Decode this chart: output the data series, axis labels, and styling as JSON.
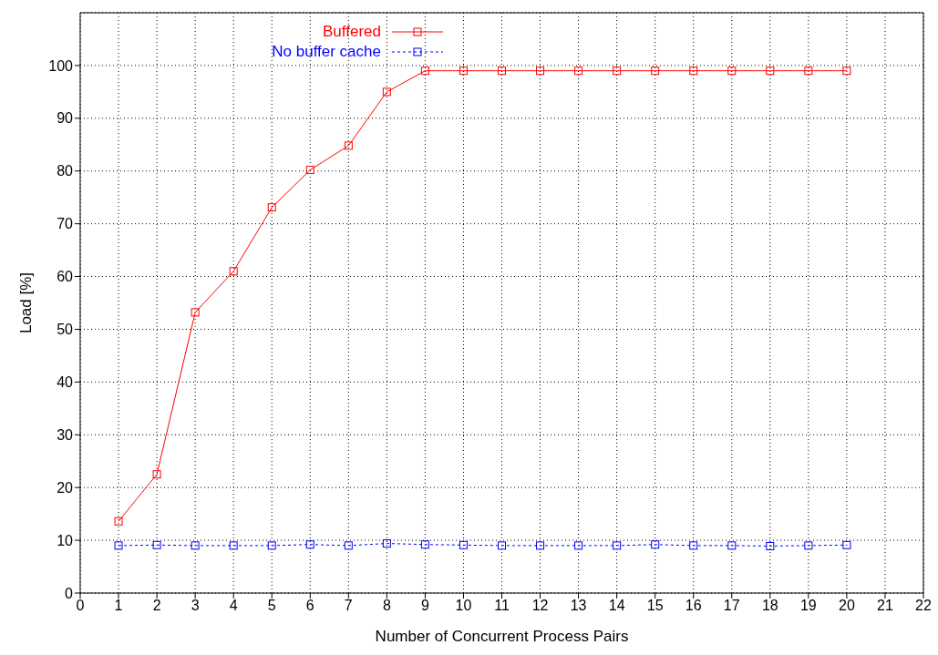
{
  "chart_data": {
    "type": "line",
    "xlabel": "Number of Concurrent Process Pairs",
    "ylabel": "Load [%]",
    "x": [
      1,
      2,
      3,
      4,
      5,
      6,
      7,
      8,
      9,
      10,
      11,
      12,
      13,
      14,
      15,
      16,
      17,
      18,
      19,
      20
    ],
    "xlim": [
      0,
      22
    ],
    "xticks": [
      0,
      1,
      2,
      3,
      4,
      5,
      6,
      7,
      8,
      9,
      10,
      11,
      12,
      13,
      14,
      15,
      16,
      17,
      18,
      19,
      20,
      21,
      22
    ],
    "ylim": [
      0,
      110
    ],
    "yticks": [
      0,
      10,
      20,
      30,
      40,
      50,
      60,
      70,
      80,
      90,
      100
    ],
    "grid": true,
    "legend": "top left",
    "marker": "square",
    "series": [
      {
        "name": "Buffered",
        "color": "#ff0000",
        "line_style": "solid",
        "values": [
          13.6,
          22.5,
          53.2,
          61,
          73.1,
          80.2,
          84.8,
          95,
          99,
          99,
          99,
          99,
          99,
          99,
          99,
          99,
          99,
          99,
          99,
          99
        ]
      },
      {
        "name": "No buffer cache",
        "color": "#0000ff",
        "line_style": "dotted",
        "values": [
          9,
          9.1,
          9,
          9,
          9,
          9.2,
          9,
          9.4,
          9.2,
          9.1,
          9,
          9,
          9,
          9,
          9.2,
          9,
          9,
          8.9,
          9,
          9.1
        ]
      }
    ]
  }
}
